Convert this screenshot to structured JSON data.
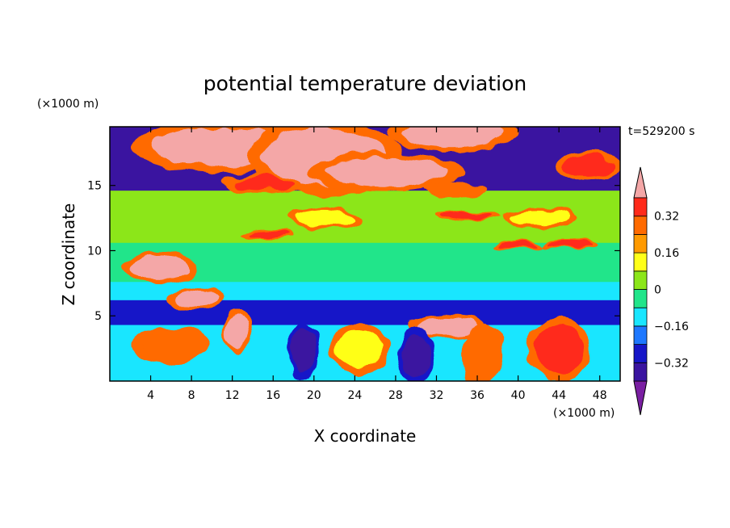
{
  "chart_data": {
    "type": "heatmap",
    "title": "potential temperature deviation",
    "xlabel": "X coordinate",
    "ylabel": "Z coordinate",
    "x_unit": "(×1000 m)",
    "y_unit": "(×1000 m)",
    "time_label": "t=529200 s",
    "xlim": [
      0,
      50
    ],
    "ylim": [
      0,
      19.5
    ],
    "x_ticks": [
      4,
      8,
      12,
      16,
      20,
      24,
      28,
      32,
      36,
      40,
      44,
      48
    ],
    "y_ticks": [
      5,
      10,
      15
    ],
    "colorbar": {
      "levels": [
        -0.4,
        -0.32,
        -0.24,
        -0.16,
        -0.08,
        0,
        0.08,
        0.16,
        0.24,
        0.32,
        0.4
      ],
      "tick_labels": [
        "0.32",
        "0.16",
        "0",
        "−0.16",
        "−0.32"
      ],
      "tick_values": [
        0.32,
        0.16,
        0,
        -0.16,
        -0.32
      ],
      "colors": [
        "#7a1fa2",
        "#3a14a0",
        "#1616c8",
        "#1e78ff",
        "#19e6ff",
        "#21e58a",
        "#8ce619",
        "#ffff19",
        "#ff9a00",
        "#ff6a00",
        "#ff2a1a",
        "#f4a7a7"
      ]
    },
    "bands": [
      {
        "z": [
          14.6,
          19.5
        ],
        "value": -0.4
      },
      {
        "z": [
          10.6,
          14.6
        ],
        "value": 0.04
      },
      {
        "z": [
          7.6,
          10.6
        ],
        "value": -0.06
      },
      {
        "z": [
          6.2,
          7.6
        ],
        "value": -0.12
      },
      {
        "z": [
          4.3,
          6.2
        ],
        "value": -0.28
      },
      {
        "z": [
          0,
          4.3
        ],
        "value": -0.12
      }
    ],
    "features": [
      {
        "x": 11,
        "z": 18.0,
        "rx": 7,
        "rz": 1.5,
        "value": 0.45
      },
      {
        "x": 21,
        "z": 17.2,
        "rx": 6,
        "rz": 2.2,
        "value": 0.45
      },
      {
        "x": 27,
        "z": 16.0,
        "rx": 6,
        "rz": 1.1,
        "value": 0.45
      },
      {
        "x": 33.5,
        "z": 19.0,
        "rx": 5,
        "rz": 1.0,
        "value": 0.45
      },
      {
        "x": 47,
        "z": 16.5,
        "rx": 2.5,
        "rz": 0.8,
        "value": 0.36
      },
      {
        "x": 15,
        "z": 15.2,
        "rx": 3,
        "rz": 0.5,
        "value": 0.36
      },
      {
        "x": 34,
        "z": 14.7,
        "rx": 2.5,
        "rz": 0.4,
        "value": 0.3
      },
      {
        "x": 5,
        "z": 8.7,
        "rx": 3,
        "rz": 0.9,
        "value": 0.45
      },
      {
        "x": 8.5,
        "z": 6.3,
        "rx": 2.2,
        "rz": 0.7,
        "value": 0.45
      },
      {
        "x": 12.5,
        "z": 3.8,
        "rx": 1.2,
        "rz": 1.2,
        "value": 0.45
      },
      {
        "x": 33,
        "z": 4.2,
        "rx": 3,
        "rz": 0.7,
        "value": 0.45
      },
      {
        "x": 40,
        "z": 10.5,
        "rx": 2,
        "rz": 0.3,
        "value": 0.36
      },
      {
        "x": 45,
        "z": 10.5,
        "rx": 2,
        "rz": 0.3,
        "value": 0.36
      },
      {
        "x": 15.5,
        "z": 11.2,
        "rx": 2,
        "rz": 0.3,
        "value": 0.32
      },
      {
        "x": 35,
        "z": 12.6,
        "rx": 2.5,
        "rz": 0.3,
        "value": 0.32
      },
      {
        "x": 19,
        "z": 2.3,
        "rx": 1.2,
        "rz": 1.6,
        "value": -0.4
      },
      {
        "x": 24.5,
        "z": 2.5,
        "rx": 2.4,
        "rz": 1.4,
        "value": 0.12
      },
      {
        "x": 30,
        "z": 2.0,
        "rx": 1.4,
        "rz": 1.6,
        "value": -0.4
      },
      {
        "x": 36.5,
        "z": 2.0,
        "rx": 1.6,
        "rz": 1.8,
        "value": 0.3
      },
      {
        "x": 44,
        "z": 2.4,
        "rx": 2.5,
        "rz": 1.8,
        "value": 0.32
      },
      {
        "x": 6,
        "z": 2.8,
        "rx": 3,
        "rz": 1.0,
        "value": 0.3
      },
      {
        "x": 21,
        "z": 12.5,
        "rx": 3,
        "rz": 0.6,
        "value": 0.08
      },
      {
        "x": 42,
        "z": 12.5,
        "rx": 3,
        "rz": 0.6,
        "value": 0.12
      }
    ]
  }
}
